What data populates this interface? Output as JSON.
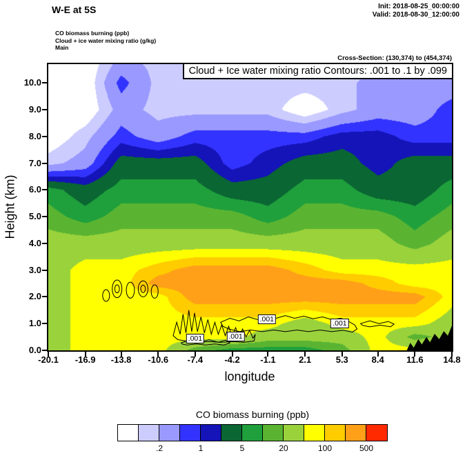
{
  "header": {
    "title": "W-E at 5S",
    "init_line": "Init: 2018-08-25_00:00:00",
    "valid_line": "Valid: 2018-08-30_12:00:00",
    "legend_lines": [
      "CO biomass burning   (ppb)",
      "Cloud + ice water mixing ratio   (g/kg)",
      "Main"
    ],
    "cross_section": "Cross-Section: (130,374) to (454,374)"
  },
  "plot": {
    "contour_banner": "Cloud + Ice water mixing ratio Contours: .001 to .1 by .099",
    "xlabel": "longitude",
    "ylabel": "Height (km)"
  },
  "chart_data": {
    "type": "heatmap",
    "title": "W-E at 5S",
    "xlabel": "longitude",
    "ylabel": "Height (km)",
    "fill_variable": "CO biomass burning (ppb)",
    "contour_variable": "Cloud + Ice water mixing ratio (g/kg)",
    "x_range": [
      -20.1,
      14.8
    ],
    "y_range": [
      0,
      10.7
    ],
    "x_ticks": [
      -20.1,
      -16.9,
      -13.8,
      -10.6,
      -7.4,
      -4.2,
      -1.1,
      2.1,
      5.3,
      8.4,
      11.6,
      14.8
    ],
    "x_tick_labels": [
      "-20.1",
      "-16.9",
      "-13.8",
      "-10.6",
      "-7.4",
      "-4.2",
      "-1.1",
      "2.1",
      "5.3",
      "8.4",
      "11.6",
      "14.8"
    ],
    "y_ticks": [
      0,
      1,
      2,
      3,
      4,
      5,
      6,
      7,
      8,
      9,
      10
    ],
    "levels": [
      0.1,
      0.2,
      0.5,
      1,
      2,
      5,
      10,
      20,
      50,
      100,
      200,
      500
    ],
    "palette": [
      "#ffffff",
      "#ccccff",
      "#9999ff",
      "#3333ff",
      "#1414b8",
      "#0a6633",
      "#1fa03c",
      "#5ab432",
      "#9ad23c",
      "#ffff00",
      "#ffcc00",
      "#ffa018",
      "#ff2a00"
    ],
    "grid_x": [
      -20.1,
      -16.9,
      -13.8,
      -10.6,
      -7.4,
      -4.2,
      -1.1,
      2.1,
      5.3,
      8.4,
      11.6,
      14.8
    ],
    "grid_y": [
      0,
      0.5,
      1,
      2,
      2.5,
      3,
      4,
      5,
      6,
      7,
      8,
      9,
      10,
      10.7
    ],
    "values_ppb": [
      [
        30,
        70,
        70,
        70,
        14,
        7,
        7,
        7,
        14,
        70,
        70,
        70
      ],
      [
        30,
        70,
        70,
        70,
        70,
        70,
        30,
        30,
        30,
        70,
        14,
        30
      ],
      [
        30,
        70,
        70,
        70,
        70,
        70,
        70,
        30,
        70,
        70,
        70,
        30
      ],
      [
        30,
        70,
        70,
        70,
        300,
        300,
        300,
        300,
        300,
        300,
        300,
        70
      ],
      [
        30,
        70,
        70,
        300,
        300,
        300,
        300,
        300,
        300,
        150,
        70,
        70
      ],
      [
        30,
        70,
        70,
        150,
        300,
        300,
        300,
        150,
        70,
        70,
        70,
        70
      ],
      [
        30,
        30,
        30,
        30,
        30,
        30,
        30,
        30,
        30,
        30,
        14,
        30
      ],
      [
        14,
        7,
        14,
        14,
        14,
        14,
        7,
        14,
        14,
        14,
        7,
        14
      ],
      [
        7,
        3,
        7,
        7,
        7,
        3,
        3,
        7,
        7,
        3,
        3,
        7
      ],
      [
        0.15,
        0.3,
        3,
        3,
        3,
        0.7,
        1.4,
        3,
        3,
        1.4,
        3,
        3
      ],
      [
        0.05,
        0.15,
        0.7,
        0.3,
        0.7,
        0.7,
        0.7,
        0.7,
        1.4,
        1.4,
        0.7,
        0.7
      ],
      [
        0.05,
        0.05,
        0.3,
        0.15,
        0.15,
        0.15,
        0.15,
        0.05,
        0.15,
        0.3,
        0.3,
        0.7
      ],
      [
        0.05,
        0.05,
        0.7,
        0.15,
        0.15,
        0.15,
        0.15,
        0.15,
        0.15,
        0.3,
        0.3,
        0.3
      ],
      [
        0.05,
        0.05,
        0.3,
        0.15,
        0.15,
        0.15,
        0.15,
        0.15,
        0.15,
        0.15,
        0.3,
        0.3
      ]
    ],
    "cloud_contours": {
      "level_range": ".001 to .1 by .099",
      "labels": [
        {
          "text": ".001",
          "lon": -7.4,
          "km": 0.45
        },
        {
          "text": ".001",
          "lon": -3.9,
          "km": 0.52
        },
        {
          "text": ".001",
          "lon": -1.2,
          "km": 1.15
        },
        {
          "text": ".001",
          "lon": 5.1,
          "km": 1.0
        }
      ],
      "paths": [
        [
          [
            -9.3,
            0.55
          ],
          [
            -9.0,
            1.05
          ],
          [
            -8.7,
            0.6
          ],
          [
            -8.45,
            1.35
          ],
          [
            -8.2,
            0.65
          ],
          [
            -7.95,
            1.5
          ],
          [
            -7.7,
            0.7
          ],
          [
            -7.45,
            1.4
          ],
          [
            -7.2,
            0.7
          ],
          [
            -6.9,
            1.25
          ],
          [
            -6.6,
            0.65
          ],
          [
            -6.3,
            1.15
          ],
          [
            -6.0,
            0.6
          ],
          [
            -5.7,
            1.05
          ],
          [
            -5.4,
            0.6
          ],
          [
            -5.1,
            0.95
          ],
          [
            -4.8,
            0.55
          ],
          [
            -4.5,
            0.9
          ],
          [
            -4.2,
            0.5
          ],
          [
            -3.9,
            0.85
          ],
          [
            -3.6,
            0.5
          ],
          [
            -3.3,
            0.8
          ],
          [
            -3.0,
            0.5
          ],
          [
            -2.7,
            0.75
          ],
          [
            -2.4,
            0.45
          ],
          [
            -2.2,
            0.6
          ],
          [
            -2.3,
            0.35
          ],
          [
            -3.2,
            0.3
          ],
          [
            -4.2,
            0.33
          ],
          [
            -5.2,
            0.3
          ],
          [
            -6.2,
            0.33
          ],
          [
            -7.2,
            0.3
          ],
          [
            -8.2,
            0.35
          ],
          [
            -8.9,
            0.4
          ]
        ],
        [
          [
            -5.2,
            1.05
          ],
          [
            -4.4,
            1.2
          ],
          [
            -3.6,
            1.1
          ],
          [
            -2.8,
            1.25
          ],
          [
            -2.0,
            1.15
          ],
          [
            -1.2,
            1.3
          ],
          [
            -0.4,
            1.2
          ],
          [
            0.4,
            1.3
          ],
          [
            1.2,
            1.2
          ],
          [
            2.0,
            1.28
          ],
          [
            2.8,
            1.18
          ],
          [
            3.6,
            1.25
          ],
          [
            4.4,
            1.15
          ],
          [
            5.2,
            1.2
          ],
          [
            5.8,
            1.1
          ],
          [
            6.4,
            0.95
          ],
          [
            6.6,
            0.8
          ],
          [
            6.2,
            0.68
          ],
          [
            5.4,
            0.75
          ],
          [
            4.4,
            0.7
          ],
          [
            3.4,
            0.76
          ],
          [
            2.4,
            0.7
          ],
          [
            1.4,
            0.76
          ],
          [
            0.4,
            0.7
          ],
          [
            -0.6,
            0.76
          ],
          [
            -1.6,
            0.7
          ],
          [
            -2.6,
            0.76
          ],
          [
            -3.6,
            0.7
          ],
          [
            -4.5,
            0.8
          ],
          [
            -5.0,
            0.9
          ]
        ],
        [
          [
            -8.6,
            0.28
          ],
          [
            -7.8,
            0.4
          ],
          [
            -7.0,
            0.3
          ],
          [
            -6.2,
            0.4
          ],
          [
            -5.4,
            0.3
          ],
          [
            -4.8,
            0.38
          ],
          [
            -4.4,
            0.28
          ],
          [
            -4.9,
            0.2
          ],
          [
            -5.7,
            0.24
          ],
          [
            -6.5,
            0.2
          ],
          [
            -7.3,
            0.24
          ],
          [
            -8.1,
            0.2
          ],
          [
            -8.5,
            0.23
          ]
        ],
        [
          [
            6.9,
            1.0
          ],
          [
            7.7,
            1.1
          ],
          [
            8.5,
            1.0
          ],
          [
            9.3,
            1.08
          ],
          [
            9.8,
            0.98
          ],
          [
            9.5,
            0.88
          ],
          [
            8.6,
            0.94
          ],
          [
            7.7,
            0.88
          ],
          [
            7.1,
            0.93
          ]
        ]
      ],
      "ellipses": [
        {
          "lon": -15.1,
          "km": 2.05,
          "rx": 0.3,
          "ry": 0.22
        },
        {
          "lon": -14.15,
          "km": 2.3,
          "rx": 0.42,
          "ry": 0.33
        },
        {
          "lon": -14.15,
          "km": 2.3,
          "rx": 0.2,
          "ry": 0.15
        },
        {
          "lon": -13.0,
          "km": 2.25,
          "rx": 0.35,
          "ry": 0.3
        },
        {
          "lon": -11.9,
          "km": 2.3,
          "rx": 0.42,
          "ry": 0.3
        },
        {
          "lon": -11.9,
          "km": 2.3,
          "rx": 0.2,
          "ry": 0.14
        },
        {
          "lon": -10.9,
          "km": 2.2,
          "rx": 0.3,
          "ry": 0.25
        }
      ]
    },
    "terrain_profile": [
      [
        10.9,
        0
      ],
      [
        11.2,
        0.28
      ],
      [
        11.5,
        0.1
      ],
      [
        11.9,
        0.42
      ],
      [
        12.2,
        0.22
      ],
      [
        12.6,
        0.5
      ],
      [
        12.9,
        0.3
      ],
      [
        13.3,
        0.62
      ],
      [
        13.7,
        0.42
      ],
      [
        14.1,
        0.72
      ],
      [
        14.45,
        0.55
      ],
      [
        14.8,
        0.92
      ],
      [
        14.8,
        0
      ]
    ],
    "colorbar": {
      "title": "CO biomass burning  (ppb)",
      "tick_labels": [
        ".2",
        "1",
        "5",
        "20",
        "100",
        "500"
      ],
      "tick_boundaries": [
        2,
        4,
        6,
        8,
        10,
        12
      ]
    }
  }
}
